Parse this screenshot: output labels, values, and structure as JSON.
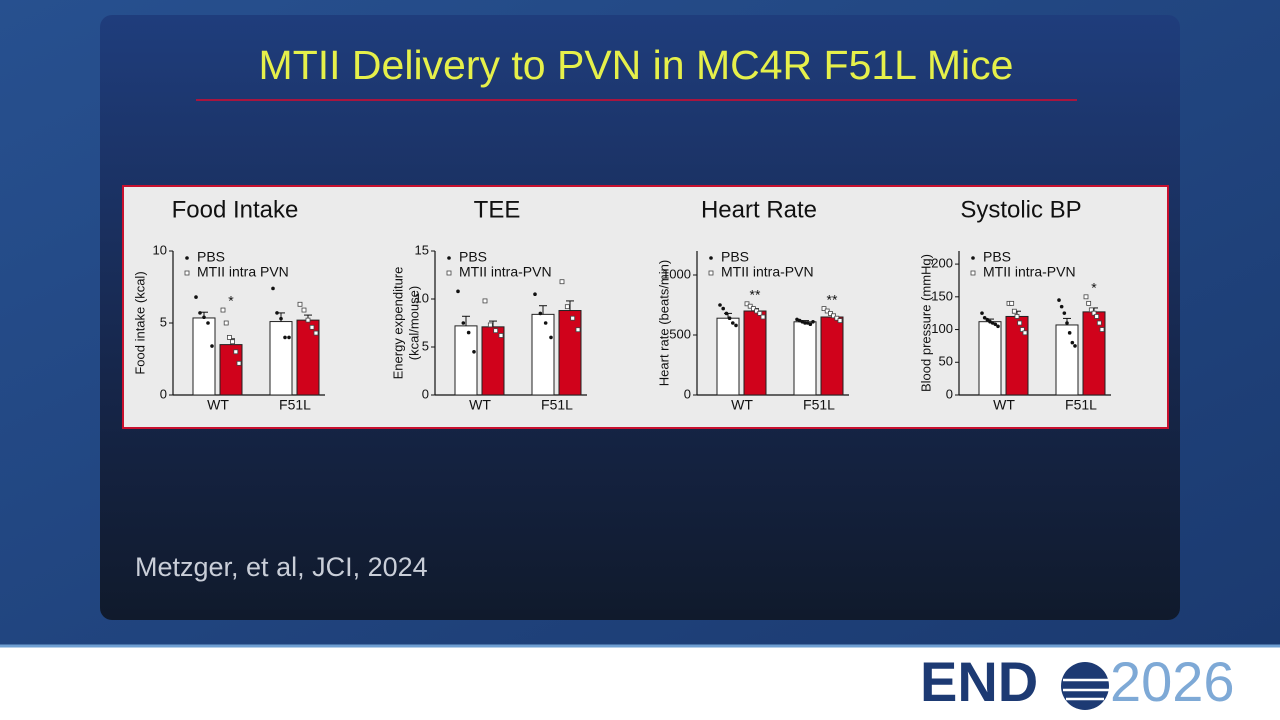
{
  "title": "MTII Delivery to PVN in MC4R F51L Mice",
  "citation": "Metzger, et al, JCI, 2024",
  "logo": {
    "left": "END",
    "right": "2026"
  },
  "chart_data": [
    {
      "type": "bar",
      "title": "Food Intake",
      "ylabel": [
        "Food intake (kcal)"
      ],
      "categories": [
        "WT",
        "F51L"
      ],
      "ylim": [
        0,
        10
      ],
      "yticks": [
        0,
        5,
        10
      ],
      "series": [
        {
          "name": "PBS",
          "color": "#ffffff",
          "marker": "dot",
          "values": [
            5.35,
            5.1
          ],
          "errors": [
            0.4,
            0.6
          ],
          "points": [
            [
              6.8,
              5.7,
              5.4,
              5.0,
              3.4
            ],
            [
              7.4,
              5.7,
              5.3,
              4.0,
              4.0
            ]
          ]
        },
        {
          "name": "MTII intra PVN",
          "color": "#d0021b",
          "marker": "square",
          "values": [
            3.5,
            5.2
          ],
          "errors": [
            0.4,
            0.35
          ],
          "points": [
            [
              5.9,
              5.0,
              4.0,
              3.7,
              3.0,
              2.2
            ],
            [
              6.3,
              5.9,
              5.2,
              4.7,
              4.3
            ]
          ],
          "annotations": [
            "*",
            null
          ]
        }
      ]
    },
    {
      "type": "bar",
      "title": "TEE",
      "ylabel": [
        "Energy expenditure",
        "(kcal/mouse)"
      ],
      "categories": [
        "WT",
        "F51L"
      ],
      "ylim": [
        0,
        15
      ],
      "yticks": [
        0,
        5,
        10,
        15
      ],
      "series": [
        {
          "name": "PBS",
          "color": "#ffffff",
          "marker": "dot",
          "values": [
            7.2,
            8.4
          ],
          "errors": [
            1.0,
            0.9
          ],
          "points": [
            [
              10.8,
              7.5,
              6.5,
              4.5
            ],
            [
              10.5,
              8.5,
              7.5,
              6.0
            ]
          ]
        },
        {
          "name": "MTII intra-PVN",
          "color": "#d0021b",
          "marker": "square",
          "values": [
            7.1,
            8.8
          ],
          "errors": [
            0.6,
            1.0
          ],
          "points": [
            [
              9.8,
              7.3,
              6.7,
              6.2
            ],
            [
              11.8,
              9.2,
              8.0,
              6.8
            ]
          ]
        }
      ]
    },
    {
      "type": "bar",
      "title": "Heart Rate",
      "ylabel": [
        "Heart rate (beats/min)"
      ],
      "categories": [
        "WT",
        "F51L"
      ],
      "ylim": [
        0,
        1200
      ],
      "yticks": [
        0,
        500,
        1000
      ],
      "series": [
        {
          "name": "PBS",
          "color": "#ffffff",
          "marker": "dot",
          "values": [
            640,
            610
          ],
          "errors": [
            40,
            10
          ],
          "points": [
            [
              750,
              720,
              680,
              640,
              600,
              580
            ],
            [
              630,
              620,
              610,
              600,
              600,
              590,
              610
            ]
          ]
        },
        {
          "name": "MTII intra-PVN",
          "color": "#d0021b",
          "marker": "square",
          "values": [
            700,
            650
          ],
          "errors": [
            20,
            20
          ],
          "points": [
            [
              760,
              740,
              720,
              700,
              680,
              650
            ],
            [
              720,
              700,
              680,
              660,
              640,
              620
            ]
          ],
          "annotations": [
            "**",
            "**"
          ]
        }
      ]
    },
    {
      "type": "bar",
      "title": "Systolic BP",
      "ylabel": [
        "Blood pressure (mmHg)"
      ],
      "categories": [
        "WT",
        "F51L"
      ],
      "ylim": [
        0,
        220
      ],
      "yticks": [
        0,
        50,
        100,
        150,
        200
      ],
      "series": [
        {
          "name": "PBS",
          "color": "#ffffff",
          "marker": "dot",
          "values": [
            112,
            107
          ],
          "errors": [
            4,
            10
          ],
          "points": [
            [
              125,
              118,
              115,
              112,
              110,
              108,
              105
            ],
            [
              145,
              135,
              125,
              110,
              95,
              80,
              75
            ]
          ]
        },
        {
          "name": "MTII intra-PVN",
          "color": "#d0021b",
          "marker": "square",
          "values": [
            120,
            127
          ],
          "errors": [
            8,
            6
          ],
          "points": [
            [
              140,
              140,
              128,
              120,
              110,
              100,
              95
            ],
            [
              150,
              140,
              130,
              125,
              120,
              110,
              100
            ]
          ],
          "annotations": [
            null,
            "*"
          ]
        }
      ]
    }
  ]
}
